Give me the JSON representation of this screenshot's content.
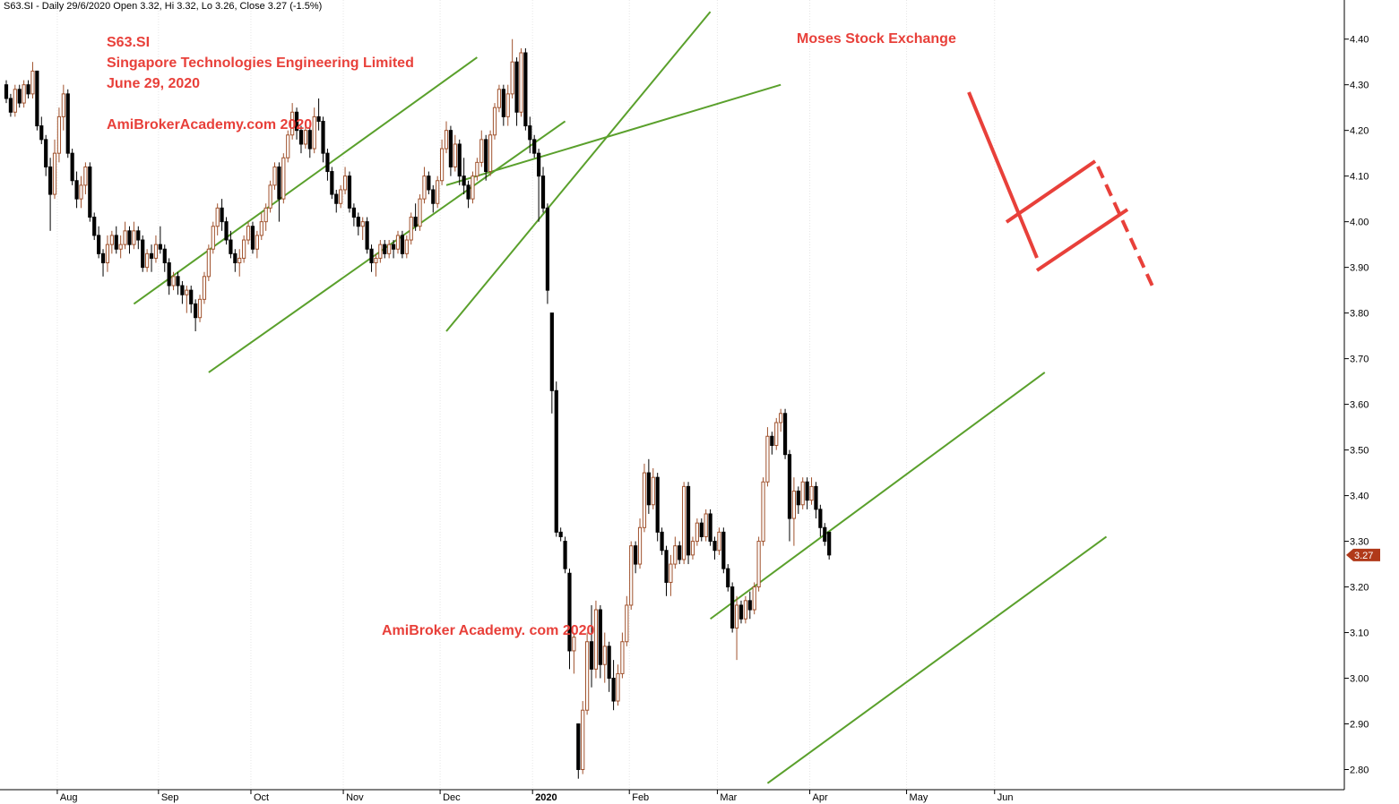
{
  "header_text": "S63.SI - Daily 29/6/2020 Open 3.32, Hi 3.32, Lo 3.26, Close 3.27 (-1.5%)",
  "annotations": {
    "ticker": "S63.SI",
    "company": "Singapore Technologies Engineering Limited",
    "date": "June 29, 2020",
    "site_top": "AmiBrokerAcademy.com  2020",
    "site_bottom": "AmiBroker Academy. com 2020",
    "brand": "Moses Stock Exchange"
  },
  "colors": {
    "bear": "#000000",
    "bull": "#a0522d",
    "channel": "#5aa02c",
    "annotation": "#e8403a",
    "price_tag": "#b0391a"
  },
  "chart_data": {
    "type": "candlestick",
    "title": "S63.SI",
    "symbol": "S63.SI",
    "interval": "Daily",
    "last": {
      "date": "29/6/2020",
      "open": 3.32,
      "high": 3.32,
      "low": 3.26,
      "close": 3.27,
      "change_pct": -1.5
    },
    "last_price_label": "3.27",
    "ylim": [
      2.75,
      4.47
    ],
    "y_ticks": [
      "4.40",
      "4.30",
      "4.20",
      "4.10",
      "4.00",
      "3.90",
      "3.80",
      "3.70",
      "3.60",
      "3.50",
      "3.40",
      "3.30",
      "3.20",
      "3.10",
      "3.00",
      "2.90",
      "2.80"
    ],
    "x_labels": [
      "Aug",
      "Sep",
      "Oct",
      "Nov",
      "Dec",
      "2020",
      "Feb",
      "Mar",
      "Apr",
      "May",
      "Jun"
    ],
    "x_label_index": [
      12,
      35,
      56,
      77,
      99,
      120,
      142,
      162,
      183,
      205,
      225
    ],
    "channels": [
      {
        "name": "channel-1",
        "lines": [
          [
            [
              29,
              3.82
            ],
            [
              107,
              4.36
            ]
          ],
          [
            [
              46,
              3.67
            ],
            [
              127,
              4.22
            ]
          ]
        ]
      },
      {
        "name": "channel-2",
        "lines": [
          [
            [
              100,
              3.76
            ],
            [
              160,
              4.46
            ]
          ],
          [
            [
              100,
              4.08
            ],
            [
              176,
              4.3
            ]
          ]
        ]
      },
      {
        "name": "channel-3",
        "lines": [
          [
            [
              160,
              3.13
            ],
            [
              236,
              3.67
            ]
          ],
          [
            [
              173,
              2.77
            ],
            [
              250,
              3.31
            ]
          ]
        ]
      }
    ],
    "candles": [
      [
        4.3,
        4.31,
        4.26,
        4.27
      ],
      [
        4.27,
        4.28,
        4.23,
        4.24
      ],
      [
        4.24,
        4.3,
        4.23,
        4.29
      ],
      [
        4.29,
        4.3,
        4.25,
        4.26
      ],
      [
        4.26,
        4.31,
        4.25,
        4.3
      ],
      [
        4.3,
        4.31,
        4.27,
        4.28
      ],
      [
        4.28,
        4.35,
        4.27,
        4.33
      ],
      [
        4.33,
        4.33,
        4.2,
        4.21
      ],
      [
        4.21,
        4.23,
        4.17,
        4.18
      ],
      [
        4.18,
        4.19,
        4.1,
        4.12
      ],
      [
        4.12,
        4.14,
        3.98,
        4.06
      ],
      [
        4.06,
        4.18,
        4.05,
        4.15
      ],
      [
        4.15,
        4.25,
        4.13,
        4.23
      ],
      [
        4.23,
        4.3,
        4.2,
        4.28
      ],
      [
        4.28,
        4.29,
        4.14,
        4.15
      ],
      [
        4.15,
        4.16,
        4.08,
        4.09
      ],
      [
        4.09,
        4.11,
        4.03,
        4.05
      ],
      [
        4.05,
        4.1,
        4.03,
        4.08
      ],
      [
        4.08,
        4.13,
        4.06,
        4.12
      ],
      [
        4.12,
        4.13,
        4.0,
        4.01
      ],
      [
        4.01,
        4.02,
        3.96,
        3.97
      ],
      [
        3.97,
        3.99,
        3.92,
        3.93
      ],
      [
        3.93,
        3.94,
        3.88,
        3.91
      ],
      [
        3.91,
        3.97,
        3.89,
        3.95
      ],
      [
        3.95,
        3.98,
        3.93,
        3.97
      ],
      [
        3.97,
        3.99,
        3.93,
        3.94
      ],
      [
        3.94,
        3.97,
        3.92,
        3.95
      ],
      [
        3.95,
        4.0,
        3.94,
        3.98
      ],
      [
        3.98,
        3.99,
        3.93,
        3.95
      ],
      [
        3.95,
        4.0,
        3.94,
        3.98
      ],
      [
        3.98,
        3.99,
        3.94,
        3.96
      ],
      [
        3.96,
        3.97,
        3.89,
        3.9
      ],
      [
        3.9,
        3.94,
        3.89,
        3.93
      ],
      [
        3.93,
        3.95,
        3.89,
        3.92
      ],
      [
        3.92,
        3.97,
        3.91,
        3.95
      ],
      [
        3.95,
        3.99,
        3.93,
        3.94
      ],
      [
        3.94,
        3.95,
        3.89,
        3.91
      ],
      [
        3.91,
        3.92,
        3.84,
        3.86
      ],
      [
        3.86,
        3.89,
        3.85,
        3.88
      ],
      [
        3.88,
        3.89,
        3.84,
        3.86
      ],
      [
        3.86,
        3.87,
        3.82,
        3.84
      ],
      [
        3.84,
        3.86,
        3.8,
        3.85
      ],
      [
        3.85,
        3.86,
        3.8,
        3.82
      ],
      [
        3.82,
        3.83,
        3.76,
        3.79
      ],
      [
        3.79,
        3.84,
        3.78,
        3.83
      ],
      [
        3.83,
        3.89,
        3.82,
        3.88
      ],
      [
        3.88,
        3.95,
        3.87,
        3.94
      ],
      [
        3.94,
        4.0,
        3.93,
        3.99
      ],
      [
        3.99,
        4.04,
        3.97,
        4.03
      ],
      [
        4.03,
        4.05,
        3.98,
        4.0
      ],
      [
        4.0,
        4.01,
        3.95,
        3.96
      ],
      [
        3.96,
        3.98,
        3.92,
        3.93
      ],
      [
        3.93,
        3.94,
        3.89,
        3.91
      ],
      [
        3.91,
        3.94,
        3.88,
        3.92
      ],
      [
        3.92,
        3.97,
        3.91,
        3.96
      ],
      [
        3.96,
        4.0,
        3.95,
        3.99
      ],
      [
        3.99,
        4.0,
        3.93,
        3.94
      ],
      [
        3.94,
        3.98,
        3.92,
        3.97
      ],
      [
        3.97,
        4.02,
        3.96,
        4.0
      ],
      [
        4.0,
        4.04,
        3.98,
        4.03
      ],
      [
        4.03,
        4.09,
        4.02,
        4.08
      ],
      [
        4.08,
        4.13,
        4.07,
        4.12
      ],
      [
        4.12,
        4.13,
        4.0,
        4.05
      ],
      [
        4.05,
        4.15,
        4.04,
        4.14
      ],
      [
        4.14,
        4.2,
        4.13,
        4.19
      ],
      [
        4.19,
        4.26,
        4.18,
        4.24
      ],
      [
        4.24,
        4.25,
        4.18,
        4.2
      ],
      [
        4.2,
        4.21,
        4.15,
        4.17
      ],
      [
        4.17,
        4.22,
        4.16,
        4.2
      ],
      [
        4.2,
        4.21,
        4.14,
        4.16
      ],
      [
        4.16,
        4.25,
        4.15,
        4.23
      ],
      [
        4.23,
        4.27,
        4.2,
        4.22
      ],
      [
        4.22,
        4.23,
        4.13,
        4.15
      ],
      [
        4.15,
        4.16,
        4.09,
        4.11
      ],
      [
        4.11,
        4.12,
        4.05,
        4.06
      ],
      [
        4.06,
        4.07,
        4.02,
        4.04
      ],
      [
        4.04,
        4.08,
        4.03,
        4.07
      ],
      [
        4.07,
        4.12,
        4.06,
        4.1
      ],
      [
        4.1,
        4.11,
        4.02,
        4.03
      ],
      [
        4.03,
        4.04,
        3.99,
        4.01
      ],
      [
        4.01,
        4.02,
        3.97,
        3.99
      ],
      [
        3.99,
        4.01,
        3.96,
        4.0
      ],
      [
        4.0,
        4.01,
        3.93,
        3.94
      ],
      [
        3.94,
        3.95,
        3.89,
        3.91
      ],
      [
        3.91,
        3.93,
        3.88,
        3.92
      ],
      [
        3.92,
        3.96,
        3.91,
        3.95
      ],
      [
        3.95,
        3.96,
        3.92,
        3.93
      ],
      [
        3.93,
        3.96,
        3.92,
        3.95
      ],
      [
        3.95,
        3.96,
        3.92,
        3.94
      ],
      [
        3.94,
        3.98,
        3.93,
        3.97
      ],
      [
        3.97,
        3.98,
        3.92,
        3.93
      ],
      [
        3.93,
        3.97,
        3.92,
        3.96
      ],
      [
        3.96,
        4.02,
        3.95,
        4.01
      ],
      [
        4.01,
        4.04,
        3.98,
        3.99
      ],
      [
        3.99,
        4.06,
        3.98,
        4.05
      ],
      [
        4.05,
        4.12,
        4.04,
        4.1
      ],
      [
        4.1,
        4.11,
        4.06,
        4.07
      ],
      [
        4.07,
        4.08,
        4.02,
        4.04
      ],
      [
        4.04,
        4.1,
        4.03,
        4.09
      ],
      [
        4.09,
        4.18,
        4.08,
        4.16
      ],
      [
        4.16,
        4.22,
        4.15,
        4.2
      ],
      [
        4.2,
        4.21,
        4.1,
        4.12
      ],
      [
        4.12,
        4.19,
        4.11,
        4.17
      ],
      [
        4.17,
        4.18,
        4.08,
        4.1
      ],
      [
        4.1,
        4.14,
        4.06,
        4.08
      ],
      [
        4.08,
        4.09,
        4.03,
        4.05
      ],
      [
        4.05,
        4.11,
        4.04,
        4.1
      ],
      [
        4.1,
        4.14,
        4.09,
        4.13
      ],
      [
        4.13,
        4.2,
        4.12,
        4.18
      ],
      [
        4.18,
        4.19,
        4.09,
        4.11
      ],
      [
        4.11,
        4.2,
        4.1,
        4.19
      ],
      [
        4.19,
        4.26,
        4.18,
        4.25
      ],
      [
        4.25,
        4.3,
        4.24,
        4.29
      ],
      [
        4.29,
        4.3,
        4.21,
        4.23
      ],
      [
        4.23,
        4.3,
        4.21,
        4.28
      ],
      [
        4.28,
        4.4,
        4.27,
        4.35
      ],
      [
        4.35,
        4.36,
        4.21,
        4.24
      ],
      [
        4.24,
        4.38,
        4.23,
        4.37
      ],
      [
        4.37,
        4.38,
        4.2,
        4.21
      ],
      [
        4.21,
        4.23,
        4.15,
        4.18
      ],
      [
        4.18,
        4.19,
        4.14,
        4.15
      ],
      [
        4.15,
        4.16,
        4.0,
        4.1
      ],
      [
        4.1,
        4.12,
        4.02,
        4.03
      ],
      [
        4.03,
        4.04,
        3.82,
        3.85
      ],
      [
        3.8,
        3.8,
        3.58,
        3.63
      ],
      [
        3.63,
        3.65,
        3.31,
        3.32
      ],
      [
        3.32,
        3.33,
        3.3,
        3.31
      ],
      [
        3.3,
        3.31,
        3.23,
        3.24
      ],
      [
        3.23,
        3.24,
        3.02,
        3.06
      ],
      [
        3.06,
        3.1,
        3.01,
        3.09
      ],
      [
        2.9,
        2.9,
        2.78,
        2.8
      ],
      [
        2.8,
        2.95,
        2.79,
        2.93
      ],
      [
        2.93,
        3.1,
        2.92,
        3.08
      ],
      [
        3.08,
        3.16,
        2.98,
        3.02
      ],
      [
        3.02,
        3.17,
        3.0,
        3.15
      ],
      [
        3.15,
        3.16,
        3.0,
        3.03
      ],
      [
        3.03,
        3.1,
        2.99,
        3.07
      ],
      [
        3.07,
        3.08,
        2.97,
        3.0
      ],
      [
        3.0,
        3.04,
        2.93,
        2.95
      ],
      [
        2.95,
        3.03,
        2.94,
        3.01
      ],
      [
        3.01,
        3.1,
        3.0,
        3.08
      ],
      [
        3.08,
        3.18,
        3.07,
        3.16
      ],
      [
        3.16,
        3.3,
        3.15,
        3.29
      ],
      [
        3.29,
        3.3,
        3.23,
        3.25
      ],
      [
        3.25,
        3.35,
        3.24,
        3.33
      ],
      [
        3.33,
        3.47,
        3.32,
        3.45
      ],
      [
        3.45,
        3.48,
        3.36,
        3.38
      ],
      [
        3.38,
        3.46,
        3.37,
        3.44
      ],
      [
        3.44,
        3.45,
        3.3,
        3.32
      ],
      [
        3.32,
        3.33,
        3.27,
        3.28
      ],
      [
        3.28,
        3.29,
        3.18,
        3.21
      ],
      [
        3.21,
        3.27,
        3.18,
        3.25
      ],
      [
        3.25,
        3.31,
        3.24,
        3.29
      ],
      [
        3.29,
        3.3,
        3.25,
        3.26
      ],
      [
        3.26,
        3.43,
        3.25,
        3.42
      ],
      [
        3.42,
        3.43,
        3.25,
        3.27
      ],
      [
        3.27,
        3.31,
        3.26,
        3.3
      ],
      [
        3.3,
        3.35,
        3.29,
        3.34
      ],
      [
        3.34,
        3.35,
        3.3,
        3.31
      ],
      [
        3.31,
        3.37,
        3.3,
        3.36
      ],
      [
        3.36,
        3.37,
        3.29,
        3.3
      ],
      [
        3.3,
        3.31,
        3.26,
        3.28
      ],
      [
        3.28,
        3.33,
        3.27,
        3.32
      ],
      [
        3.32,
        3.33,
        3.23,
        3.24
      ],
      [
        3.24,
        3.25,
        3.19,
        3.2
      ],
      [
        3.2,
        3.21,
        3.1,
        3.11
      ],
      [
        3.11,
        3.18,
        3.04,
        3.16
      ],
      [
        3.16,
        3.17,
        3.12,
        3.13
      ],
      [
        3.13,
        3.18,
        3.12,
        3.17
      ],
      [
        3.17,
        3.19,
        3.13,
        3.15
      ],
      [
        3.15,
        3.21,
        3.14,
        3.2
      ],
      [
        3.2,
        3.31,
        3.19,
        3.3
      ],
      [
        3.3,
        3.44,
        3.29,
        3.43
      ],
      [
        3.43,
        3.55,
        3.42,
        3.53
      ],
      [
        3.53,
        3.54,
        3.49,
        3.51
      ],
      [
        3.51,
        3.57,
        3.5,
        3.56
      ],
      [
        3.56,
        3.59,
        3.54,
        3.58
      ],
      [
        3.58,
        3.59,
        3.48,
        3.49
      ],
      [
        3.49,
        3.5,
        3.3,
        3.35
      ],
      [
        3.35,
        3.44,
        3.29,
        3.41
      ],
      [
        3.41,
        3.42,
        3.36,
        3.38
      ],
      [
        3.38,
        3.44,
        3.37,
        3.43
      ],
      [
        3.43,
        3.44,
        3.37,
        3.39
      ],
      [
        3.39,
        3.44,
        3.38,
        3.42
      ],
      [
        3.42,
        3.43,
        3.35,
        3.37
      ],
      [
        3.37,
        3.38,
        3.31,
        3.33
      ],
      [
        3.33,
        3.34,
        3.29,
        3.3
      ],
      [
        3.32,
        3.32,
        3.26,
        3.27
      ]
    ]
  }
}
